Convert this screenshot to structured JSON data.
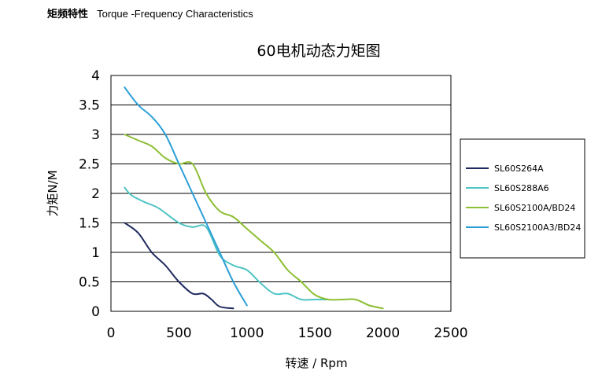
{
  "header": {
    "title_cn": "矩频特性",
    "title_en": "Torque -Frequency Characteristics"
  },
  "chart_data": {
    "type": "line",
    "title": "60电机动态力矩图",
    "xlabel": "转速 / Rpm",
    "ylabel": "力矩N/M",
    "xlim": [
      0,
      2500
    ],
    "ylim": [
      0,
      4
    ],
    "xticks": [
      0,
      500,
      1000,
      1500,
      2000,
      2500
    ],
    "yticks": [
      0,
      0.5,
      1,
      1.5,
      2,
      2.5,
      3,
      3.5,
      4
    ],
    "ytick_labels": [
      "0",
      "0.5",
      "1",
      "1.5",
      "2",
      "2.5",
      "3",
      "3.5",
      "4"
    ],
    "grid": "horizontal",
    "legend_position": "right",
    "series": [
      {
        "name": "SL60S264A",
        "color": "#1f2a5e",
        "points": [
          [
            100,
            1.5
          ],
          [
            200,
            1.33
          ],
          [
            300,
            1.0
          ],
          [
            400,
            0.78
          ],
          [
            500,
            0.5
          ],
          [
            600,
            0.3
          ],
          [
            680,
            0.3
          ],
          [
            740,
            0.2
          ],
          [
            800,
            0.08
          ],
          [
            900,
            0.05
          ]
        ]
      },
      {
        "name": "SL60S288A6",
        "color": "#4fc4c4",
        "points": [
          [
            100,
            2.1
          ],
          [
            150,
            1.97
          ],
          [
            250,
            1.85
          ],
          [
            350,
            1.75
          ],
          [
            500,
            1.5
          ],
          [
            600,
            1.43
          ],
          [
            700,
            1.43
          ],
          [
            800,
            0.95
          ],
          [
            900,
            0.78
          ],
          [
            1000,
            0.7
          ],
          [
            1100,
            0.48
          ],
          [
            1200,
            0.3
          ],
          [
            1300,
            0.3
          ],
          [
            1400,
            0.2
          ],
          [
            1500,
            0.2
          ],
          [
            1600,
            0.2
          ]
        ]
      },
      {
        "name": "SL60S2100A/BD24",
        "color": "#8cbf32",
        "points": [
          [
            100,
            3.0
          ],
          [
            200,
            2.9
          ],
          [
            300,
            2.8
          ],
          [
            400,
            2.6
          ],
          [
            500,
            2.5
          ],
          [
            600,
            2.5
          ],
          [
            700,
            2.0
          ],
          [
            800,
            1.7
          ],
          [
            900,
            1.6
          ],
          [
            1000,
            1.4
          ],
          [
            1100,
            1.2
          ],
          [
            1200,
            1.0
          ],
          [
            1300,
            0.7
          ],
          [
            1400,
            0.5
          ],
          [
            1500,
            0.28
          ],
          [
            1600,
            0.2
          ],
          [
            1700,
            0.2
          ],
          [
            1800,
            0.2
          ],
          [
            1900,
            0.1
          ],
          [
            2000,
            0.05
          ]
        ]
      },
      {
        "name": "SL60S2100A3/BD24",
        "color": "#2a9fd6",
        "points": [
          [
            100,
            3.8
          ],
          [
            200,
            3.5
          ],
          [
            300,
            3.3
          ],
          [
            400,
            3.0
          ],
          [
            500,
            2.5
          ],
          [
            600,
            2.0
          ],
          [
            700,
            1.5
          ],
          [
            800,
            1.0
          ],
          [
            900,
            0.5
          ],
          [
            1000,
            0.1
          ]
        ]
      }
    ]
  }
}
